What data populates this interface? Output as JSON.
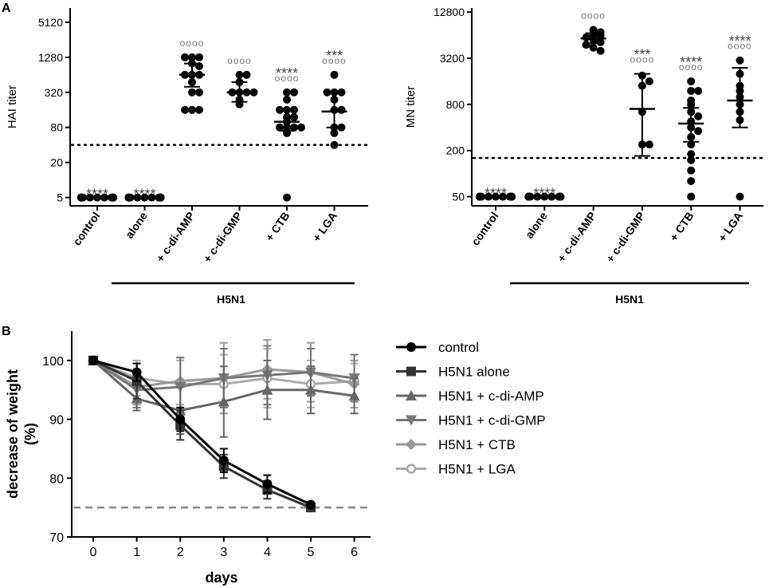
{
  "panel_labels": {
    "a": "A",
    "b": "B"
  },
  "chart_data": [
    {
      "type": "scatter",
      "id": "hai",
      "ylabel": "HAI titer",
      "yscale": "log2",
      "ylim": [
        3.6,
        9000
      ],
      "yticks": [
        5,
        20,
        80,
        320,
        1280,
        5120
      ],
      "ytick_labels": [
        "5",
        "20",
        "80",
        "320",
        "1280",
        "5120"
      ],
      "threshold": 40,
      "categories": [
        "control",
        "alone",
        "+ c-di-AMP",
        "+ c-di-GMP",
        "+ CTB",
        "+ LGA"
      ],
      "group_label": "H5N1",
      "stars": [
        "****",
        "****",
        "",
        "",
        "****",
        "***"
      ],
      "circles": [
        "",
        "",
        "oooo",
        "oooo",
        "oooo",
        "oooo"
      ],
      "groups": [
        {
          "mean": 5,
          "lo": 5,
          "hi": 5,
          "points": [
            5,
            5,
            5,
            5,
            5,
            5,
            5,
            5,
            5,
            5,
            5,
            5,
            5,
            5,
            5,
            5
          ]
        },
        {
          "mean": 5,
          "lo": 5,
          "hi": 5,
          "points": [
            5,
            5,
            5,
            5,
            5,
            5,
            5,
            5,
            5,
            5,
            5,
            5,
            5,
            5,
            5,
            5
          ]
        },
        {
          "mean": 640,
          "lo": 400,
          "hi": 1000,
          "points": [
            1280,
            1280,
            1280,
            1000,
            900,
            640,
            640,
            640,
            480,
            320,
            320,
            160,
            160,
            160
          ]
        },
        {
          "mean": 320,
          "lo": 220,
          "hi": 480,
          "points": [
            640,
            640,
            480,
            320,
            320,
            320,
            320,
            240,
            200
          ]
        },
        {
          "mean": 100,
          "lo": 70,
          "hi": 160,
          "points": [
            320,
            320,
            240,
            160,
            160,
            160,
            120,
            120,
            100,
            80,
            80,
            80,
            80,
            64,
            5
          ]
        },
        {
          "mean": 150,
          "lo": 80,
          "hi": 320,
          "points": [
            640,
            320,
            320,
            320,
            240,
            160,
            160,
            80,
            80,
            64,
            40
          ]
        }
      ]
    },
    {
      "type": "scatter",
      "id": "mn",
      "ylabel": "MN titer",
      "yscale": "log2",
      "ylim": [
        38,
        14500
      ],
      "yticks": [
        50,
        200,
        800,
        3200,
        12800
      ],
      "ytick_labels": [
        "50",
        "200",
        "800",
        "3200",
        "12800"
      ],
      "threshold": 160,
      "categories": [
        "control",
        "alone",
        "+ c-di-AMP",
        "+ c-di-GMP",
        "+ CTB",
        "+ LGA"
      ],
      "group_label": "H5N1",
      "stars": [
        "****",
        "****",
        "",
        "***",
        "****",
        "****"
      ],
      "circles": [
        "",
        "",
        "oooo",
        "oooo",
        "oooo",
        "oooo"
      ],
      "groups": [
        {
          "mean": 50,
          "lo": 50,
          "hi": 50,
          "points": [
            50,
            50,
            50,
            50,
            50,
            50,
            50,
            50,
            50,
            50,
            50,
            50,
            50,
            50
          ]
        },
        {
          "mean": 50,
          "lo": 50,
          "hi": 50,
          "points": [
            50,
            50,
            50,
            50,
            50,
            50,
            50,
            50,
            50,
            50,
            50,
            50,
            50,
            50
          ]
        },
        {
          "mean": 5800,
          "lo": 5000,
          "hi": 6800,
          "points": [
            7500,
            7000,
            6400,
            6400,
            6000,
            5600,
            5200,
            4800,
            4400,
            4000
          ]
        },
        {
          "mean": 700,
          "lo": 170,
          "hi": 2000,
          "points": [
            1900,
            1600,
            1400,
            640,
            240,
            240
          ]
        },
        {
          "mean": 450,
          "lo": 260,
          "hi": 720,
          "points": [
            1600,
            1200,
            1200,
            900,
            800,
            640,
            560,
            480,
            400,
            360,
            300,
            240,
            180,
            150,
            110,
            80,
            50
          ]
        },
        {
          "mean": 900,
          "lo": 400,
          "hi": 2400,
          "points": [
            3000,
            2000,
            1400,
            1200,
            1000,
            800,
            640,
            500,
            50
          ]
        }
      ]
    },
    {
      "type": "line",
      "id": "weight",
      "xlabel": "days",
      "ylabel": "decrease of weight (%)",
      "ylabel_lines": [
        "decrease of weight",
        "(%)"
      ],
      "x": [
        0,
        1,
        2,
        3,
        4,
        5,
        6
      ],
      "ylim": [
        70,
        105
      ],
      "yticks": [
        70,
        80,
        90,
        100
      ],
      "threshold": 75,
      "series": [
        {
          "name": "control",
          "marker": "circle",
          "color": "#000000",
          "x": [
            0,
            1,
            2,
            3,
            4,
            5
          ],
          "values": [
            100,
            98,
            90,
            83,
            79,
            75.5
          ],
          "err": [
            0,
            1.5,
            2,
            2,
            1.5,
            0
          ]
        },
        {
          "name": "H5N1 alone",
          "marker": "square",
          "color": "#333333",
          "x": [
            0,
            1,
            2,
            3,
            4,
            5
          ],
          "values": [
            100,
            96.5,
            89,
            82,
            78,
            75
          ],
          "err": [
            0,
            3,
            2.5,
            2,
            1.5,
            0
          ]
        },
        {
          "name": "H5N1 + c-di-AMP",
          "marker": "triangle-up",
          "color": "#666666",
          "x": [
            0,
            1,
            2,
            3,
            4,
            5,
            6
          ],
          "values": [
            100,
            93.5,
            91.5,
            93,
            95,
            95,
            94
          ],
          "err": [
            0,
            2,
            4,
            6,
            5,
            4,
            3
          ]
        },
        {
          "name": "H5N1 + c-di-GMP",
          "marker": "triangle-down",
          "color": "#777777",
          "x": [
            0,
            1,
            2,
            3,
            4,
            5,
            6
          ],
          "values": [
            100,
            95,
            95.5,
            97,
            97.5,
            98,
            97
          ],
          "err": [
            0,
            3,
            5,
            5,
            5,
            4,
            4
          ]
        },
        {
          "name": "H5N1 + CTB",
          "marker": "diamond",
          "color": "#999999",
          "x": [
            0,
            1,
            2,
            3,
            4,
            5,
            6
          ],
          "values": [
            100,
            95.5,
            96.5,
            97,
            98.5,
            98,
            96
          ],
          "err": [
            0,
            3,
            4,
            6,
            5,
            5,
            4
          ]
        },
        {
          "name": "H5N1 + LGA",
          "marker": "open-circle",
          "color": "#aaaaaa",
          "x": [
            0,
            1,
            2,
            3,
            4,
            5,
            6
          ],
          "values": [
            100,
            97,
            96,
            96,
            97,
            96,
            96.5
          ],
          "err": [
            0,
            3,
            4,
            5,
            5,
            4,
            3
          ]
        }
      ]
    }
  ]
}
